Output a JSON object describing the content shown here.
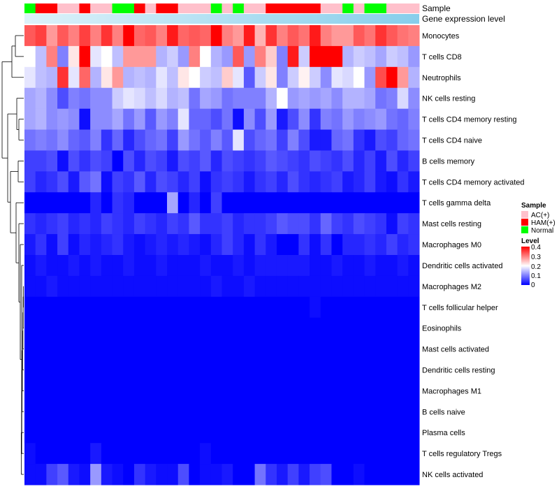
{
  "chart_data": {
    "type": "heatmap",
    "annotation_labels": {
      "sample": "Sample",
      "gene_expression": "Gene expression level"
    },
    "sample_groups": [
      "AC(+)",
      "HAM(+)",
      "Normal"
    ],
    "sample_colors": {
      "AC(+)": "#FFC0CB",
      "HAM(+)": "#FF0000",
      "Normal": "#00FF00"
    },
    "sample_annotation": [
      "Normal",
      "HAM(+)",
      "HAM(+)",
      "AC(+)",
      "AC(+)",
      "HAM(+)",
      "AC(+)",
      "AC(+)",
      "Normal",
      "Normal",
      "HAM(+)",
      "AC(+)",
      "HAM(+)",
      "HAM(+)",
      "AC(+)",
      "AC(+)",
      "AC(+)",
      "Normal",
      "AC(+)",
      "Normal",
      "AC(+)",
      "AC(+)",
      "HAM(+)",
      "HAM(+)",
      "HAM(+)",
      "HAM(+)",
      "HAM(+)",
      "AC(+)",
      "AC(+)",
      "Normal",
      "AC(+)",
      "Normal",
      "Normal",
      "AC(+)",
      "AC(+)",
      "AC(+)"
    ],
    "gene_expression_gradient": [
      "#DDF2FA",
      "#87CEEB"
    ],
    "rows": [
      "Monocytes",
      "T cells CD8",
      "Neutrophils",
      "NK cells resting",
      "T cells CD4 memory resting",
      "T cells CD4 naive",
      "B cells memory",
      "T cells CD4 memory activated",
      "T cells gamma delta",
      "Mast cells resting",
      "Macrophages M0",
      "Dendritic cells activated",
      "Macrophages M2",
      "T cells follicular helper",
      "Eosinophils",
      "Mast cells activated",
      "Dendritic cells resting",
      "Macrophages M1",
      "B cells naive",
      "Plasma cells",
      "T cells regulatory  Tregs",
      "NK cells activated"
    ],
    "values": [
      [
        0.33,
        0.35,
        0.28,
        0.33,
        0.3,
        0.35,
        0.3,
        0.36,
        0.3,
        0.4,
        0.32,
        0.33,
        0.3,
        0.38,
        0.32,
        0.33,
        0.32,
        0.4,
        0.3,
        0.28,
        0.38,
        0.26,
        0.36,
        0.3,
        0.33,
        0.31,
        0.38,
        0.3,
        0.28,
        0.28,
        0.33,
        0.31,
        0.36,
        0.33,
        0.31,
        0.3
      ],
      [
        0.2,
        0.15,
        0.3,
        0.1,
        0.22,
        0.4,
        0.18,
        0.2,
        0.15,
        0.28,
        0.28,
        0.28,
        0.14,
        0.16,
        0.12,
        0.3,
        0.2,
        0.14,
        0.12,
        0.33,
        0.12,
        0.3,
        0.24,
        0.1,
        0.38,
        0.16,
        0.4,
        0.4,
        0.4,
        0.14,
        0.16,
        0.15,
        0.13,
        0.16,
        0.15,
        0.12
      ],
      [
        0.18,
        0.15,
        0.14,
        0.36,
        0.18,
        0.32,
        0.14,
        0.22,
        0.28,
        0.14,
        0.15,
        0.14,
        0.18,
        0.15,
        0.22,
        0.2,
        0.16,
        0.15,
        0.24,
        0.18,
        0.07,
        0.16,
        0.22,
        0.1,
        0.16,
        0.21,
        0.16,
        0.11,
        0.18,
        0.17,
        0.2,
        0.12,
        0.34,
        0.4,
        0.28,
        0.14
      ],
      [
        0.13,
        0.14,
        0.11,
        0.06,
        0.1,
        0.09,
        0.11,
        0.11,
        0.16,
        0.18,
        0.17,
        0.15,
        0.17,
        0.14,
        0.15,
        0.09,
        0.13,
        0.12,
        0.09,
        0.1,
        0.1,
        0.1,
        0.14,
        0.2,
        0.12,
        0.13,
        0.12,
        0.13,
        0.11,
        0.14,
        0.14,
        0.13,
        0.09,
        0.1,
        0.17,
        0.11
      ],
      [
        0.13,
        0.14,
        0.11,
        0.12,
        0.11,
        0.01,
        0.11,
        0.11,
        0.13,
        0.09,
        0.12,
        0.07,
        0.12,
        0.1,
        0.18,
        0.08,
        0.08,
        0.06,
        0.09,
        0.01,
        0.11,
        0.06,
        0.12,
        0.02,
        0.06,
        0.11,
        0.04,
        0.1,
        0.09,
        0.12,
        0.1,
        0.11,
        0.12,
        0.09,
        0.08,
        0.1
      ],
      [
        0.09,
        0.1,
        0.09,
        0.11,
        0.08,
        0.07,
        0.1,
        0.04,
        0.08,
        0.03,
        0.06,
        0.08,
        0.09,
        0.05,
        0.12,
        0.09,
        0.07,
        0.1,
        0.07,
        0.18,
        0.06,
        0.08,
        0.09,
        0.05,
        0.1,
        0.06,
        0.02,
        0.02,
        0.08,
        0.09,
        0.04,
        0.02,
        0.06,
        0.05,
        0.08,
        0.09
      ],
      [
        0.05,
        0.05,
        0.06,
        0.01,
        0.06,
        0.04,
        0.06,
        0.05,
        0.0,
        0.06,
        0.03,
        0.06,
        0.05,
        0.02,
        0.06,
        0.05,
        0.07,
        0.03,
        0.06,
        0.05,
        0.04,
        0.05,
        0.07,
        0.06,
        0.05,
        0.04,
        0.06,
        0.05,
        0.04,
        0.06,
        0.03,
        0.05,
        0.02,
        0.06,
        0.03,
        0.05
      ],
      [
        0.05,
        0.03,
        0.04,
        0.06,
        0.02,
        0.07,
        0.09,
        0.01,
        0.05,
        0.04,
        0.07,
        0.03,
        0.06,
        0.05,
        0.03,
        0.05,
        0.01,
        0.04,
        0.05,
        0.04,
        0.02,
        0.04,
        0.05,
        0.03,
        0.06,
        0.04,
        0.03,
        0.04,
        0.05,
        0.02,
        0.03,
        0.05,
        0.02,
        0.01,
        0.04,
        0.02
      ],
      [
        0.0,
        0.0,
        0.0,
        0.0,
        0.0,
        0.0,
        0.03,
        0.0,
        0.04,
        0.03,
        0.0,
        0.0,
        0.0,
        0.13,
        0.0,
        0.03,
        0.0,
        0.05,
        0.0,
        0.0,
        0.0,
        0.0,
        0.0,
        0.0,
        0.0,
        0.0,
        0.0,
        0.0,
        0.0,
        0.0,
        0.0,
        0.0,
        0.0,
        0.0,
        0.0,
        0.0
      ],
      [
        0.04,
        0.03,
        0.04,
        0.05,
        0.03,
        0.04,
        0.03,
        0.05,
        0.04,
        0.03,
        0.05,
        0.04,
        0.03,
        0.05,
        0.04,
        0.07,
        0.04,
        0.04,
        0.05,
        0.03,
        0.04,
        0.04,
        0.05,
        0.07,
        0.06,
        0.06,
        0.04,
        0.08,
        0.05,
        0.04,
        0.06,
        0.05,
        0.04,
        0.01,
        0.05,
        0.04
      ],
      [
        0.02,
        0.04,
        0.01,
        0.05,
        0.01,
        0.03,
        0.02,
        0.03,
        0.04,
        0.02,
        0.01,
        0.02,
        0.03,
        0.02,
        0.03,
        0.02,
        0.01,
        0.03,
        0.05,
        0.03,
        0.01,
        0.04,
        0.02,
        0.0,
        0.0,
        0.04,
        0.01,
        0.04,
        0.0,
        0.03,
        0.03,
        0.04,
        0.03,
        0.05,
        0.03,
        0.04
      ],
      [
        0.01,
        0.02,
        0.01,
        0.01,
        0.02,
        0.01,
        0.02,
        0.01,
        0.01,
        0.02,
        0.01,
        0.01,
        0.02,
        0.01,
        0.01,
        0.01,
        0.02,
        0.01,
        0.01,
        0.02,
        0.01,
        0.02,
        0.02,
        0.02,
        0.02,
        0.02,
        0.01,
        0.01,
        0.02,
        0.01,
        0.01,
        0.02,
        0.01,
        0.01,
        0.02,
        0.01
      ],
      [
        0.01,
        0.01,
        0.02,
        0.01,
        0.01,
        0.01,
        0.01,
        0.01,
        0.01,
        0.01,
        0.01,
        0.01,
        0.01,
        0.01,
        0.01,
        0.01,
        0.01,
        0.02,
        0.01,
        0.01,
        0.02,
        0.01,
        0.01,
        0.01,
        0.01,
        0.01,
        0.01,
        0.01,
        0.01,
        0.01,
        0.01,
        0.01,
        0.01,
        0.01,
        0.01,
        0.01
      ],
      [
        0.0,
        0.0,
        0.0,
        0.0,
        0.0,
        0.0,
        0.0,
        0.0,
        0.0,
        0.0,
        0.0,
        0.0,
        0.0,
        0.0,
        0.0,
        0.0,
        0.0,
        0.0,
        0.0,
        0.0,
        0.0,
        0.0,
        0.0,
        0.0,
        0.0,
        0.0,
        0.01,
        0.0,
        0.0,
        0.0,
        0.0,
        0.0,
        0.0,
        0.0,
        0.0,
        0.0
      ],
      [
        0.0,
        0.0,
        0.0,
        0.0,
        0.0,
        0.0,
        0.0,
        0.0,
        0.0,
        0.0,
        0.0,
        0.0,
        0.0,
        0.0,
        0.0,
        0.0,
        0.0,
        0.0,
        0.0,
        0.0,
        0.0,
        0.0,
        0.0,
        0.0,
        0.0,
        0.0,
        0.0,
        0.0,
        0.0,
        0.0,
        0.0,
        0.0,
        0.0,
        0.0,
        0.0,
        0.0
      ],
      [
        0.0,
        0.0,
        0.0,
        0.0,
        0.0,
        0.0,
        0.0,
        0.0,
        0.0,
        0.0,
        0.0,
        0.0,
        0.0,
        0.0,
        0.0,
        0.0,
        0.0,
        0.0,
        0.0,
        0.0,
        0.0,
        0.0,
        0.0,
        0.0,
        0.0,
        0.0,
        0.0,
        0.0,
        0.0,
        0.0,
        0.0,
        0.0,
        0.0,
        0.0,
        0.0,
        0.0
      ],
      [
        0.0,
        0.0,
        0.0,
        0.0,
        0.0,
        0.0,
        0.0,
        0.0,
        0.0,
        0.0,
        0.0,
        0.0,
        0.0,
        0.0,
        0.0,
        0.0,
        0.0,
        0.0,
        0.0,
        0.0,
        0.0,
        0.0,
        0.0,
        0.0,
        0.0,
        0.0,
        0.0,
        0.0,
        0.0,
        0.0,
        0.0,
        0.0,
        0.0,
        0.0,
        0.0,
        0.0
      ],
      [
        0.0,
        0.0,
        0.0,
        0.0,
        0.0,
        0.0,
        0.0,
        0.0,
        0.0,
        0.0,
        0.0,
        0.0,
        0.0,
        0.0,
        0.0,
        0.0,
        0.0,
        0.0,
        0.0,
        0.0,
        0.0,
        0.0,
        0.0,
        0.0,
        0.0,
        0.0,
        0.0,
        0.0,
        0.0,
        0.0,
        0.0,
        0.0,
        0.0,
        0.0,
        0.0,
        0.0
      ],
      [
        0.0,
        0.0,
        0.0,
        0.0,
        0.0,
        0.0,
        0.0,
        0.0,
        0.0,
        0.0,
        0.0,
        0.0,
        0.0,
        0.0,
        0.0,
        0.0,
        0.0,
        0.0,
        0.0,
        0.0,
        0.0,
        0.0,
        0.0,
        0.0,
        0.0,
        0.0,
        0.0,
        0.0,
        0.0,
        0.0,
        0.0,
        0.0,
        0.0,
        0.0,
        0.0,
        0.0
      ],
      [
        0.0,
        0.0,
        0.0,
        0.0,
        0.0,
        0.0,
        0.0,
        0.0,
        0.0,
        0.0,
        0.0,
        0.0,
        0.0,
        0.0,
        0.0,
        0.0,
        0.0,
        0.0,
        0.0,
        0.0,
        0.0,
        0.0,
        0.0,
        0.0,
        0.0,
        0.0,
        0.0,
        0.0,
        0.0,
        0.0,
        0.0,
        0.0,
        0.0,
        0.0,
        0.0,
        0.0
      ],
      [
        0.01,
        0.0,
        0.0,
        0.0,
        0.0,
        0.0,
        0.02,
        0.0,
        0.0,
        0.0,
        0.0,
        0.0,
        0.0,
        0.0,
        0.0,
        0.0,
        0.01,
        0.0,
        0.0,
        0.0,
        0.0,
        0.0,
        0.0,
        0.0,
        0.0,
        0.0,
        0.0,
        0.0,
        0.0,
        0.0,
        0.0,
        0.0,
        0.0,
        0.0,
        0.0,
        0.0
      ],
      [
        0.01,
        0.01,
        0.05,
        0.07,
        0.02,
        0.01,
        0.12,
        0.02,
        0.01,
        0.0,
        0.04,
        0.02,
        0.01,
        0.01,
        0.06,
        0.0,
        0.01,
        0.01,
        0.02,
        0.0,
        0.0,
        0.09,
        0.04,
        0.02,
        0.05,
        0.02,
        0.05,
        0.06,
        0.0,
        0.0,
        0.01,
        0.0,
        0.0,
        0.0,
        0.0,
        0.0
      ]
    ],
    "legend": {
      "sample_title": "Sample",
      "level_title": "Level",
      "level_ticks": [
        "0.4",
        "0.3",
        "0.2",
        "0.1",
        "0"
      ],
      "level_range": [
        0,
        0.4
      ],
      "level_colors": [
        "#0000FF",
        "#FFFFFF",
        "#FF0000"
      ]
    }
  }
}
